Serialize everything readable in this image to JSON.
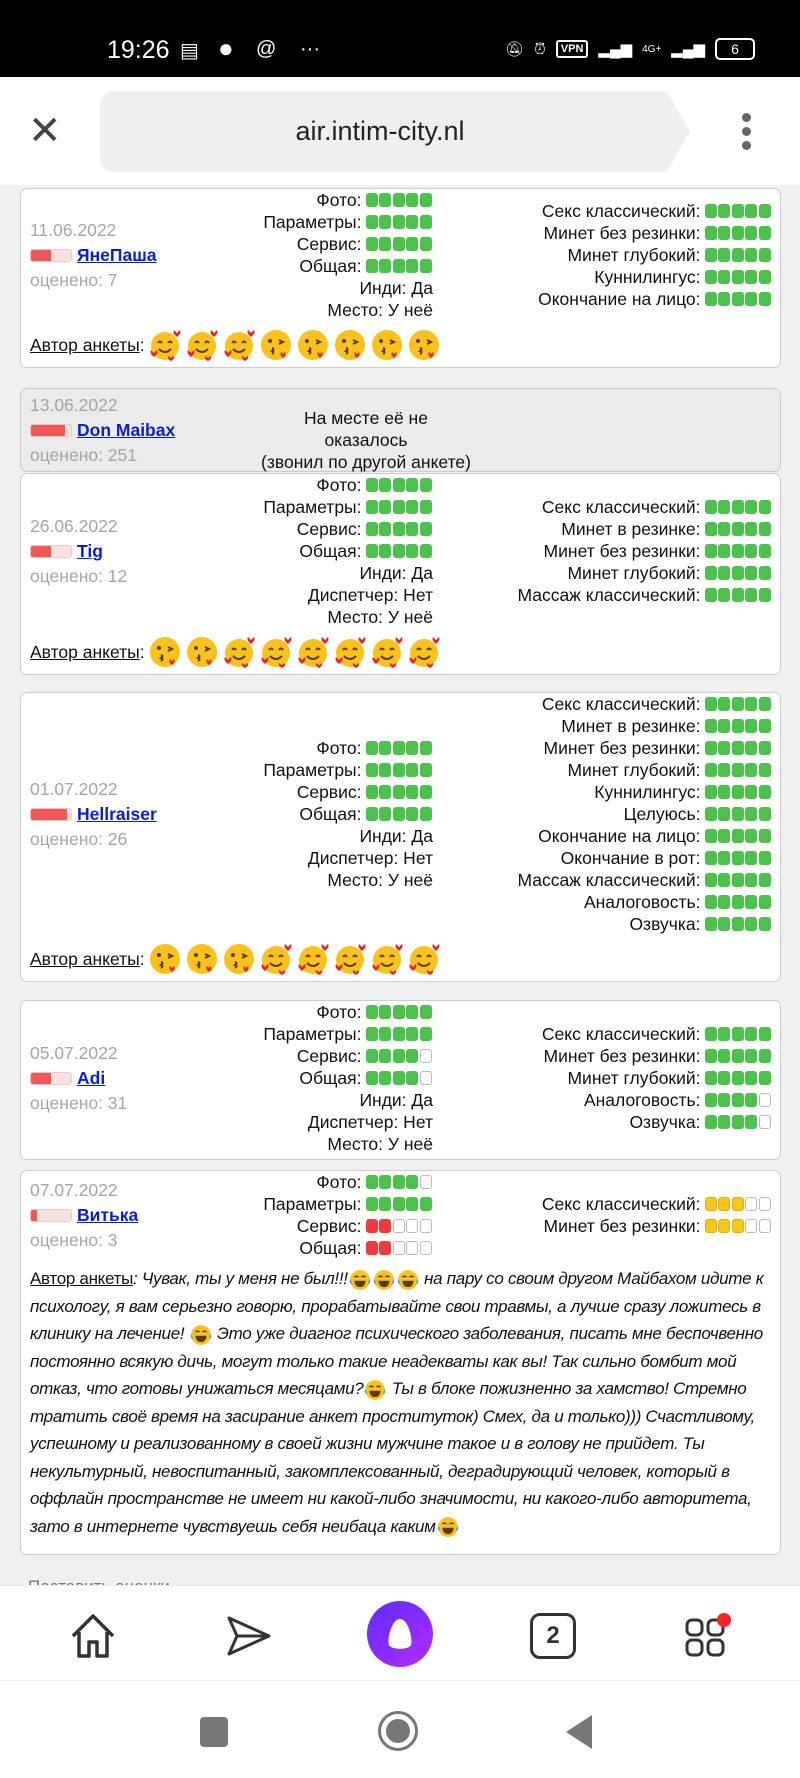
{
  "status_bar": {
    "time": "19:26",
    "vpn": "VPN",
    "network": "4G+",
    "battery": "6"
  },
  "browser": {
    "url": "air.intim-city.nl",
    "close_icon": "close-icon",
    "menu_icon": "more-vertical-icon"
  },
  "colors": {
    "green": "#4cc24c",
    "red": "#ee3b3b",
    "yellow": "#f7c51c",
    "link": "#0a1dd8",
    "rep_fill": "#f25757"
  },
  "author_label": "Автор анкеты",
  "reviews": [
    {
      "date": "11.06.2022",
      "user": "ЯнеПаша",
      "reputation": 0.5,
      "rated": "оценено: 7",
      "main": [
        {
          "label": "Фото:",
          "value": 5,
          "color": "g"
        },
        {
          "label": "Параметры:",
          "value": 5,
          "color": "g"
        },
        {
          "label": "Сервис:",
          "value": 5,
          "color": "g"
        },
        {
          "label": "Общая:",
          "value": 5,
          "color": "g"
        },
        {
          "label": "Инди: Да"
        },
        {
          "label": "Место: У неё"
        }
      ],
      "services": [
        {
          "label": "Секс классический:",
          "value": 5,
          "color": "g"
        },
        {
          "label": "Минет без резинки:",
          "value": 5,
          "color": "g"
        },
        {
          "label": "Минет глубокий:",
          "value": 5,
          "color": "g"
        },
        {
          "label": "Куннилингус:",
          "value": 5,
          "color": "g"
        },
        {
          "label": "Окончание на лицо:",
          "value": 5,
          "color": "g"
        }
      ],
      "author_emojis": [
        "smiling-face-with-hearts",
        "smiling-face-with-hearts",
        "smiling-face-with-hearts",
        "face-blowing-kiss",
        "face-blowing-kiss",
        "face-blowing-kiss",
        "face-blowing-kiss",
        "face-blowing-kiss"
      ]
    },
    {
      "date": "13.06.2022",
      "user": "Don Maibax",
      "reputation": 0.85,
      "rated": "оценено: 251",
      "gray": true,
      "message": [
        "На месте её не оказалось",
        "(звонил по другой анкете)"
      ]
    },
    {
      "date": "26.06.2022",
      "user": "Tig",
      "reputation": 0.5,
      "rated": "оценено: 12",
      "main": [
        {
          "label": "Фото:",
          "value": 5,
          "color": "g"
        },
        {
          "label": "Параметры:",
          "value": 5,
          "color": "g"
        },
        {
          "label": "Сервис:",
          "value": 5,
          "color": "g"
        },
        {
          "label": "Общая:",
          "value": 5,
          "color": "g"
        },
        {
          "label": "Инди: Да"
        },
        {
          "label": "Диспетчер: Нет"
        },
        {
          "label": "Место: У неё"
        }
      ],
      "services": [
        {
          "label": "Секс классический:",
          "value": 5,
          "color": "g"
        },
        {
          "label": "Минет в резинке:",
          "value": 5,
          "color": "g"
        },
        {
          "label": "Минет без резинки:",
          "value": 5,
          "color": "g"
        },
        {
          "label": "Минет глубокий:",
          "value": 5,
          "color": "g"
        },
        {
          "label": "Массаж классический:",
          "value": 5,
          "color": "g"
        }
      ],
      "author_emojis": [
        "face-blowing-kiss",
        "face-blowing-kiss",
        "smiling-face-with-hearts",
        "smiling-face-with-hearts",
        "smiling-face-with-hearts",
        "smiling-face-with-hearts",
        "smiling-face-with-hearts",
        "smiling-face-with-hearts"
      ]
    },
    {
      "date": "01.07.2022",
      "user": "Hellraiser",
      "reputation": 0.9,
      "rated": "оценено: 26",
      "main": [
        {
          "label": "Фото:",
          "value": 5,
          "color": "g"
        },
        {
          "label": "Параметры:",
          "value": 5,
          "color": "g"
        },
        {
          "label": "Сервис:",
          "value": 5,
          "color": "g"
        },
        {
          "label": "Общая:",
          "value": 5,
          "color": "g"
        },
        {
          "label": "Инди: Да"
        },
        {
          "label": "Диспетчер: Нет"
        },
        {
          "label": "Место: У неё"
        }
      ],
      "services": [
        {
          "label": "Секс классический:",
          "value": 5,
          "color": "g"
        },
        {
          "label": "Минет в резинке:",
          "value": 5,
          "color": "g"
        },
        {
          "label": "Минет без резинки:",
          "value": 5,
          "color": "g"
        },
        {
          "label": "Минет глубокий:",
          "value": 5,
          "color": "g"
        },
        {
          "label": "Куннилингус:",
          "value": 5,
          "color": "g"
        },
        {
          "label": "Целуюсь:",
          "value": 5,
          "color": "g"
        },
        {
          "label": "Окончание на лицо:",
          "value": 5,
          "color": "g"
        },
        {
          "label": "Окончание в рот:",
          "value": 5,
          "color": "g"
        },
        {
          "label": "Массаж классический:",
          "value": 5,
          "color": "g"
        },
        {
          "label": "Аналоговость:",
          "value": 5,
          "color": "g"
        },
        {
          "label": "Озвучка:",
          "value": 5,
          "color": "g"
        }
      ],
      "author_emojis": [
        "face-blowing-kiss",
        "face-blowing-kiss",
        "face-blowing-kiss",
        "smiling-face-with-hearts",
        "smiling-face-with-hearts",
        "smiling-face-with-hearts",
        "smiling-face-with-hearts",
        "smiling-face-with-hearts"
      ]
    },
    {
      "date": "05.07.2022",
      "user": "Adi",
      "reputation": 0.5,
      "rated": "оценено: 31",
      "main": [
        {
          "label": "Фото:",
          "value": 5,
          "color": "g"
        },
        {
          "label": "Параметры:",
          "value": 5,
          "color": "g"
        },
        {
          "label": "Сервис:",
          "value": 4,
          "color": "g"
        },
        {
          "label": "Общая:",
          "value": 4,
          "color": "g"
        },
        {
          "label": "Инди: Да"
        },
        {
          "label": "Диспетчер: Нет"
        },
        {
          "label": "Место: У неё"
        }
      ],
      "services": [
        {
          "label": "Секс классический:",
          "value": 5,
          "color": "g"
        },
        {
          "label": "Минет без резинки:",
          "value": 5,
          "color": "g"
        },
        {
          "label": "Минет глубокий:",
          "value": 5,
          "color": "g"
        },
        {
          "label": "Аналоговость:",
          "value": 4,
          "color": "g"
        },
        {
          "label": "Озвучка:",
          "value": 4,
          "color": "g"
        }
      ]
    },
    {
      "date": "07.07.2022",
      "user": "Витька",
      "reputation": 0.15,
      "rated": "оценено: 3",
      "main": [
        {
          "label": "Фото:",
          "value": 4,
          "color": "g"
        },
        {
          "label": "Параметры:",
          "value": 5,
          "color": "g"
        },
        {
          "label": "Сервис:",
          "value": 2,
          "color": "r"
        },
        {
          "label": "Общая:",
          "value": 2,
          "color": "r"
        }
      ],
      "services": [
        {
          "label": "Секс классический:",
          "value": 3,
          "color": "y"
        },
        {
          "label": "Минет без резинки:",
          "value": 3,
          "color": "y"
        }
      ],
      "comment": [
        {
          "text": "Чувак, ты у меня не был!!!"
        },
        {
          "emoji": "face-with-tears-of-joy"
        },
        {
          "emoji": "face-with-tears-of-joy"
        },
        {
          "emoji": "face-with-tears-of-joy"
        },
        {
          "text": " на пару со своим другом Майбахом идите к психологу, я вам серьезно говорю, прорабатывайте свои травмы, а лучше сразу ложитесь в клинику на лечение! "
        },
        {
          "emoji": "face-with-tears-of-joy"
        },
        {
          "text": " Это уже диагног психического заболевания, писать мне беспочвенно постоянно всякую дичь, могут только такие неадекваты как вы! Так сильно бомбит мой отказ, что готовы унижаться месяцами?"
        },
        {
          "emoji": "face-with-tears-of-joy"
        },
        {
          "text": " Ты в блоке пожизненно за хамство! Стремно тратить своё время на засирание анкет проституток) Смех, да и только))) Счастливому, успешному и реализованному в своей жизни мужчине такое и в голову не прийдет. Ты некультурный, невоспитанный, закомплексованный, деградирующий человек, который в оффлайн пространстве не имеет ни какой-либо значимости, ни какого-либо авторитета, зато в интернете чувствуешь себя неибаца каким"
        },
        {
          "emoji": "face-with-tears-of-joy"
        }
      ]
    }
  ],
  "below_text": "Поставить оценки",
  "bottom_nav": [
    {
      "name": "home",
      "icon": "home-icon"
    },
    {
      "name": "share",
      "icon": "paper-plane-icon"
    },
    {
      "name": "alice",
      "icon": "alice-assistant-icon"
    },
    {
      "name": "tabs",
      "icon": "tabs-icon",
      "label": "2"
    },
    {
      "name": "services",
      "icon": "grid-icon",
      "badge": true
    }
  ],
  "system_nav": [
    "square-recents-icon",
    "circle-home-icon",
    "triangle-back-icon"
  ]
}
